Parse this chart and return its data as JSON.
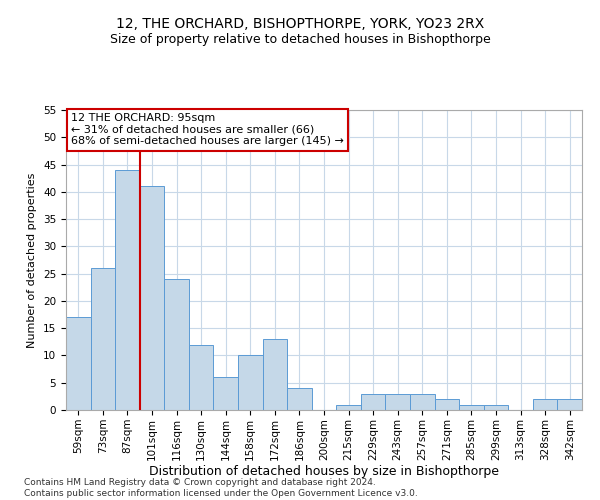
{
  "title": "12, THE ORCHARD, BISHOPTHORPE, YORK, YO23 2RX",
  "subtitle": "Size of property relative to detached houses in Bishopthorpe",
  "xlabel": "Distribution of detached houses by size in Bishopthorpe",
  "ylabel": "Number of detached properties",
  "categories": [
    "59sqm",
    "73sqm",
    "87sqm",
    "101sqm",
    "116sqm",
    "130sqm",
    "144sqm",
    "158sqm",
    "172sqm",
    "186sqm",
    "200sqm",
    "215sqm",
    "229sqm",
    "243sqm",
    "257sqm",
    "271sqm",
    "285sqm",
    "299sqm",
    "313sqm",
    "328sqm",
    "342sqm"
  ],
  "values": [
    17,
    26,
    44,
    41,
    24,
    12,
    6,
    10,
    13,
    4,
    0,
    1,
    3,
    3,
    3,
    2,
    1,
    1,
    0,
    2,
    2
  ],
  "bar_color": "#c5d8e8",
  "bar_edge_color": "#5b9bd5",
  "vline_x_index": 2,
  "vline_color": "#cc0000",
  "annotation_text": "12 THE ORCHARD: 95sqm\n← 31% of detached houses are smaller (66)\n68% of semi-detached houses are larger (145) →",
  "annotation_box_color": "#ffffff",
  "annotation_box_edge": "#cc0000",
  "ylim": [
    0,
    55
  ],
  "yticks": [
    0,
    5,
    10,
    15,
    20,
    25,
    30,
    35,
    40,
    45,
    50,
    55
  ],
  "bg_color": "#ffffff",
  "grid_color": "#c8d8e8",
  "footer": "Contains HM Land Registry data © Crown copyright and database right 2024.\nContains public sector information licensed under the Open Government Licence v3.0.",
  "title_fontsize": 10,
  "subtitle_fontsize": 9,
  "xlabel_fontsize": 9,
  "ylabel_fontsize": 8,
  "tick_fontsize": 7.5,
  "annotation_fontsize": 8,
  "footer_fontsize": 6.5
}
